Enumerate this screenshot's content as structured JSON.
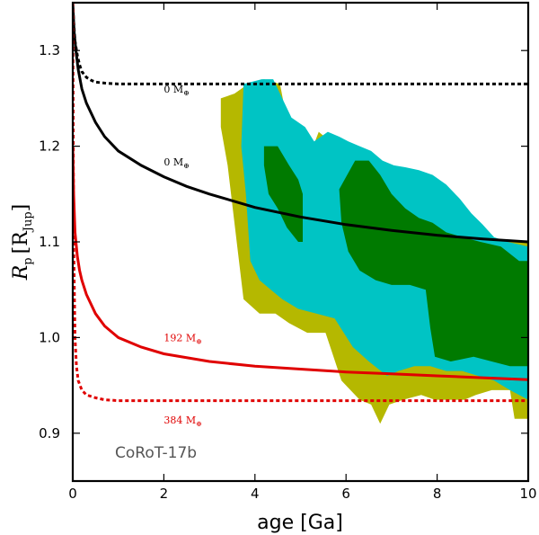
{
  "chart_data": {
    "type": "area",
    "planet_name": "CoRoT-17b",
    "xlabel": "age [Ga]",
    "ylabel": "R",
    "ylabel_sub": "p",
    "ylabel_unit": "[R",
    "ylabel_unit_sub": "Jup",
    "ylabel_close": "]",
    "xlim": [
      0,
      10
    ],
    "ylim": [
      0.85,
      1.35
    ],
    "x_ticks": [
      0,
      2,
      4,
      6,
      8,
      10
    ],
    "y_ticks": [
      0.9,
      1.0,
      1.1,
      1.2,
      1.3
    ],
    "colors": {
      "outer": "#b5b800",
      "middle": "#00c4c4",
      "inner": "#007a00",
      "black": "#000000",
      "red": "#e00000"
    },
    "series": [
      {
        "name": "0 M⊕ (dotted black)",
        "label": "0 M",
        "label_sym": "⊕",
        "color": "black",
        "dash": true,
        "x": [
          0.0,
          0.02,
          0.05,
          0.1,
          0.15,
          0.2,
          0.3,
          0.4,
          0.5,
          0.7,
          1.0,
          2.0,
          4.0,
          6.0,
          8.0,
          10.0
        ],
        "y": [
          1.35,
          1.33,
          1.31,
          1.295,
          1.285,
          1.278,
          1.272,
          1.269,
          1.267,
          1.266,
          1.265,
          1.265,
          1.265,
          1.265,
          1.265,
          1.265
        ]
      },
      {
        "name": "0 M⊕ (solid black)",
        "label": "0 M",
        "label_sym": "⊕",
        "color": "black",
        "dash": false,
        "x": [
          0.0,
          0.03,
          0.07,
          0.12,
          0.2,
          0.3,
          0.5,
          0.7,
          1.0,
          1.5,
          2.0,
          2.5,
          3.0,
          4.0,
          5.0,
          6.0,
          7.0,
          8.0,
          9.0,
          10.0
        ],
        "y": [
          1.35,
          1.32,
          1.3,
          1.28,
          1.26,
          1.245,
          1.225,
          1.21,
          1.195,
          1.18,
          1.168,
          1.158,
          1.15,
          1.136,
          1.126,
          1.118,
          1.112,
          1.107,
          1.103,
          1.1
        ]
      },
      {
        "name": "192 M⊕ (solid red)",
        "label": "192 M",
        "label_sym": "⊕",
        "color": "red",
        "dash": false,
        "x": [
          0.0,
          0.02,
          0.05,
          0.1,
          0.15,
          0.2,
          0.3,
          0.5,
          0.7,
          1.0,
          1.5,
          2.0,
          3.0,
          4.0,
          5.0,
          6.0,
          7.0,
          8.0,
          9.0,
          10.0
        ],
        "y": [
          1.2,
          1.15,
          1.11,
          1.085,
          1.07,
          1.06,
          1.045,
          1.025,
          1.012,
          1.0,
          0.99,
          0.983,
          0.975,
          0.97,
          0.967,
          0.964,
          0.962,
          0.96,
          0.958,
          0.956
        ]
      },
      {
        "name": "384 M⊕ (dotted red)",
        "label": "384 M",
        "label_sym": "⊕",
        "color": "red",
        "dash": true,
        "x": [
          0.0,
          0.02,
          0.05,
          0.08,
          0.12,
          0.2,
          0.3,
          0.5,
          0.7,
          1.0,
          2.0,
          5.0,
          10.0
        ],
        "y": [
          1.35,
          1.1,
          1.0,
          0.97,
          0.955,
          0.945,
          0.94,
          0.937,
          0.935,
          0.934,
          0.934,
          0.934,
          0.934
        ]
      }
    ],
    "regions": [
      {
        "name": "outer",
        "color": "outer",
        "polygon": [
          [
            3.25,
            1.25
          ],
          [
            3.55,
            1.255
          ],
          [
            3.85,
            1.265
          ],
          [
            4.2,
            1.27
          ],
          [
            4.55,
            1.265
          ],
          [
            4.75,
            1.215
          ],
          [
            5.0,
            1.205
          ],
          [
            5.2,
            1.19
          ],
          [
            5.4,
            1.215
          ],
          [
            5.65,
            1.205
          ],
          [
            6.05,
            1.19
          ],
          [
            6.35,
            1.19
          ],
          [
            6.55,
            1.185
          ],
          [
            6.75,
            1.175
          ],
          [
            7.0,
            1.17
          ],
          [
            7.3,
            1.165
          ],
          [
            7.55,
            1.16
          ],
          [
            7.85,
            1.15
          ],
          [
            8.2,
            1.145
          ],
          [
            8.55,
            1.13
          ],
          [
            8.9,
            1.12
          ],
          [
            9.1,
            1.105
          ],
          [
            9.3,
            1.1
          ],
          [
            9.55,
            1.1
          ],
          [
            10.0,
            1.1
          ],
          [
            10.0,
            0.915
          ],
          [
            9.7,
            0.915
          ],
          [
            9.6,
            0.945
          ],
          [
            9.2,
            0.945
          ],
          [
            8.85,
            0.94
          ],
          [
            8.6,
            0.935
          ],
          [
            8.3,
            0.935
          ],
          [
            7.95,
            0.935
          ],
          [
            7.65,
            0.94
          ],
          [
            7.25,
            0.935
          ],
          [
            6.95,
            0.93
          ],
          [
            6.75,
            0.91
          ],
          [
            6.55,
            0.93
          ],
          [
            6.3,
            0.935
          ],
          [
            5.9,
            0.955
          ],
          [
            5.55,
            1.005
          ],
          [
            5.15,
            1.005
          ],
          [
            4.75,
            1.015
          ],
          [
            4.45,
            1.025
          ],
          [
            4.1,
            1.025
          ],
          [
            3.75,
            1.04
          ],
          [
            3.6,
            1.1
          ],
          [
            3.4,
            1.18
          ],
          [
            3.25,
            1.22
          ]
        ]
      },
      {
        "name": "middle",
        "color": "middle",
        "polygon": [
          [
            3.75,
            1.265
          ],
          [
            4.15,
            1.27
          ],
          [
            4.4,
            1.27
          ],
          [
            4.55,
            1.255
          ],
          [
            4.8,
            1.23
          ],
          [
            5.1,
            1.22
          ],
          [
            5.3,
            1.205
          ],
          [
            5.6,
            1.215
          ],
          [
            5.85,
            1.21
          ],
          [
            6.05,
            1.205
          ],
          [
            6.3,
            1.2
          ],
          [
            6.55,
            1.195
          ],
          [
            6.8,
            1.185
          ],
          [
            7.05,
            1.18
          ],
          [
            7.3,
            1.178
          ],
          [
            7.6,
            1.175
          ],
          [
            7.9,
            1.17
          ],
          [
            8.2,
            1.16
          ],
          [
            8.5,
            1.145
          ],
          [
            8.75,
            1.13
          ],
          [
            9.0,
            1.118
          ],
          [
            9.25,
            1.105
          ],
          [
            9.55,
            1.1
          ],
          [
            10.0,
            1.095
          ],
          [
            10.0,
            0.935
          ],
          [
            9.6,
            0.945
          ],
          [
            9.25,
            0.955
          ],
          [
            8.9,
            0.96
          ],
          [
            8.55,
            0.965
          ],
          [
            8.2,
            0.965
          ],
          [
            7.85,
            0.97
          ],
          [
            7.5,
            0.97
          ],
          [
            7.15,
            0.965
          ],
          [
            6.9,
            0.96
          ],
          [
            6.5,
            0.975
          ],
          [
            6.15,
            0.99
          ],
          [
            5.75,
            1.02
          ],
          [
            5.35,
            1.025
          ],
          [
            4.95,
            1.03
          ],
          [
            4.6,
            1.04
          ],
          [
            4.35,
            1.05
          ],
          [
            4.1,
            1.06
          ],
          [
            3.9,
            1.08
          ],
          [
            3.8,
            1.15
          ],
          [
            3.7,
            1.2
          ]
        ]
      },
      {
        "name": "inner-a",
        "color": "inner",
        "polygon": [
          [
            4.2,
            1.2
          ],
          [
            4.5,
            1.2
          ],
          [
            4.75,
            1.18
          ],
          [
            4.95,
            1.165
          ],
          [
            5.05,
            1.15
          ],
          [
            5.05,
            1.1
          ],
          [
            4.95,
            1.1
          ],
          [
            4.7,
            1.115
          ],
          [
            4.5,
            1.135
          ],
          [
            4.3,
            1.15
          ],
          [
            4.2,
            1.18
          ]
        ]
      },
      {
        "name": "inner-b",
        "color": "inner",
        "polygon": [
          [
            5.85,
            1.155
          ],
          [
            6.2,
            1.185
          ],
          [
            6.5,
            1.185
          ],
          [
            6.75,
            1.17
          ],
          [
            7.0,
            1.15
          ],
          [
            7.3,
            1.135
          ],
          [
            7.6,
            1.125
          ],
          [
            7.9,
            1.12
          ],
          [
            8.2,
            1.11
          ],
          [
            8.55,
            1.105
          ],
          [
            8.95,
            1.1
          ],
          [
            9.4,
            1.095
          ],
          [
            9.8,
            1.08
          ],
          [
            10.0,
            1.08
          ],
          [
            10.0,
            0.97
          ],
          [
            9.6,
            0.97
          ],
          [
            9.2,
            0.975
          ],
          [
            8.8,
            0.98
          ],
          [
            8.3,
            0.975
          ],
          [
            7.95,
            0.98
          ],
          [
            7.85,
            1.01
          ],
          [
            7.75,
            1.05
          ],
          [
            7.4,
            1.055
          ],
          [
            7.0,
            1.055
          ],
          [
            6.65,
            1.06
          ],
          [
            6.3,
            1.07
          ],
          [
            6.05,
            1.09
          ],
          [
            5.9,
            1.12
          ]
        ]
      }
    ]
  }
}
